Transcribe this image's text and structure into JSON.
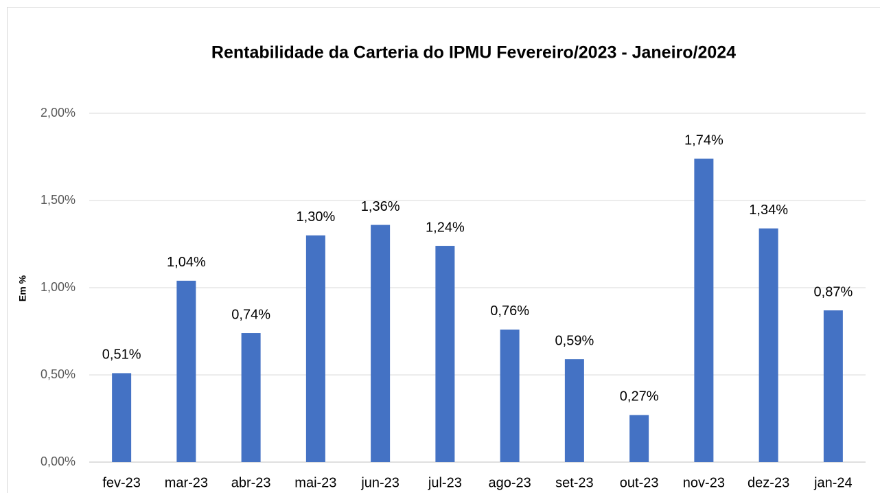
{
  "chart_data": {
    "type": "bar",
    "title": "Rentabilidade da Carteria do IPMU  Fevereiro/2023 - Janeiro/2024",
    "y_label": "Em %",
    "categories": [
      "fev-23",
      "mar-23",
      "abr-23",
      "mai-23",
      "jun-23",
      "jul-23",
      "ago-23",
      "set-23",
      "out-23",
      "nov-23",
      "dez-23",
      "jan-24"
    ],
    "values": [
      0.51,
      1.04,
      0.74,
      1.3,
      1.36,
      1.24,
      0.76,
      0.59,
      0.27,
      1.74,
      1.34,
      0.87
    ],
    "value_labels": [
      "0,51%",
      "1,04%",
      "0,74%",
      "1,30%",
      "1,36%",
      "1,24%",
      "0,76%",
      "0,59%",
      "0,27%",
      "1,74%",
      "1,34%",
      "0,87%"
    ],
    "color": "#4472c4",
    "ylim": [
      0,
      2
    ],
    "yticks": [
      {
        "value": 0,
        "label": "0,00%"
      },
      {
        "value": 0.5,
        "label": "0,50%"
      },
      {
        "value": 1,
        "label": "1,00%"
      },
      {
        "value": 1.5,
        "label": "1,50%"
      },
      {
        "value": 2,
        "label": "2,00%"
      }
    ],
    "grid": true
  }
}
